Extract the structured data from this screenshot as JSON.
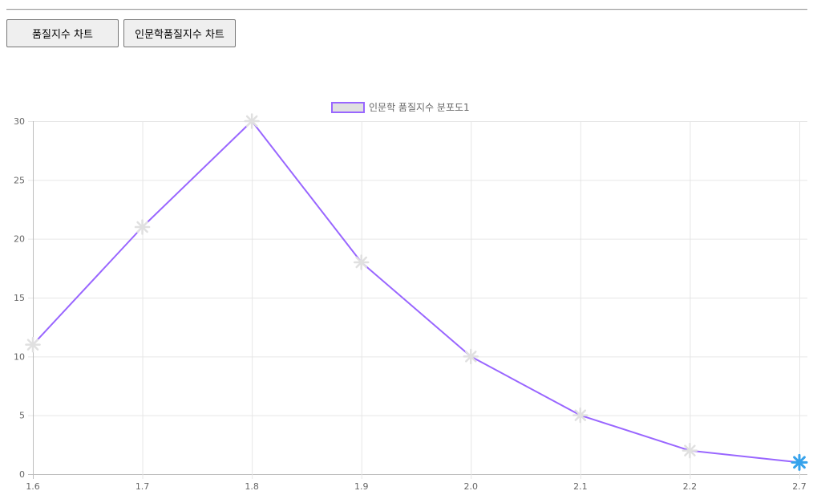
{
  "buttons": {
    "quality_index_chart": "품질지수 차트",
    "humanities_quality_index_chart": "인문학품질지수 차트"
  },
  "colors": {
    "line": "#9966ff",
    "point": "#e0e0e0",
    "active_point": "#36a2eb",
    "grid": "#e6e6e6",
    "tick_text": "#666666"
  },
  "chart_data": {
    "type": "line",
    "categories": [
      "1.6",
      "1.7",
      "1.8",
      "1.9",
      "2.0",
      "2.1",
      "2.2",
      "2.7"
    ],
    "series": [
      {
        "name": "인문학 품질지수 분포도1",
        "values": [
          11,
          21,
          30,
          18,
          10,
          5,
          2,
          1
        ],
        "point_style": "star"
      }
    ],
    "highlighted_index": 7,
    "ylim": [
      0,
      30
    ],
    "yticks": [
      0,
      5,
      10,
      15,
      20,
      25,
      30
    ],
    "grid": true,
    "legend": "top-center",
    "title": "",
    "xlabel": "",
    "ylabel": ""
  }
}
